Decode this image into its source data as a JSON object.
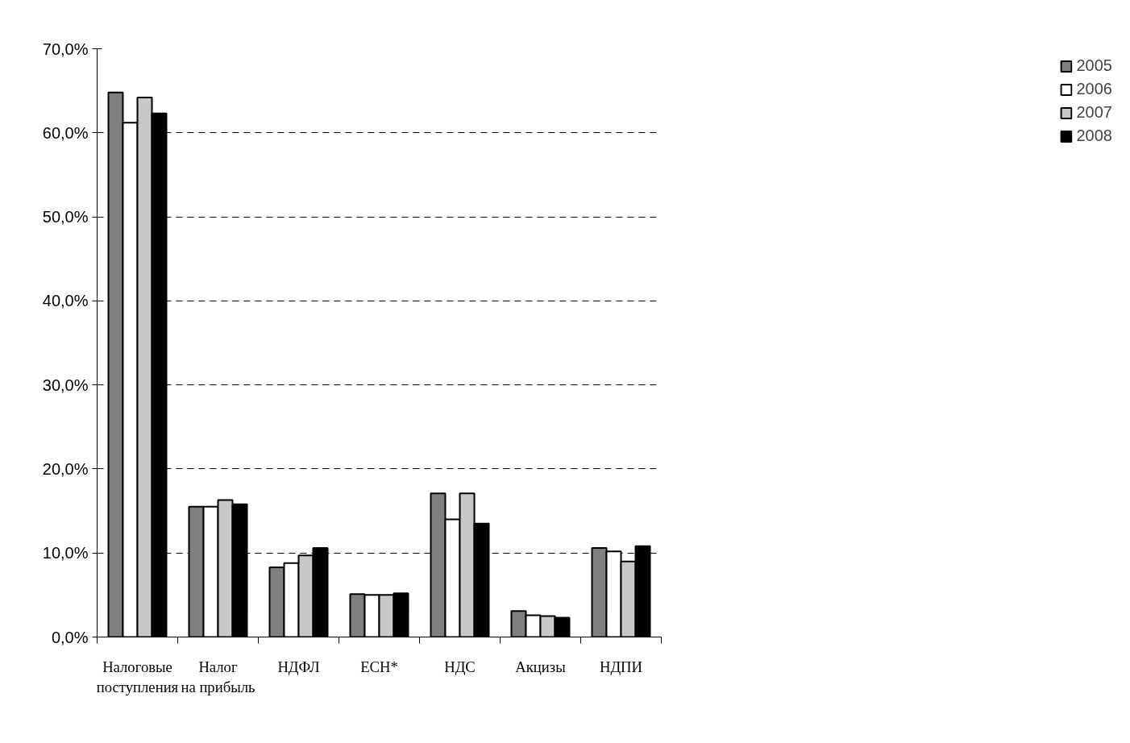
{
  "chart_data": {
    "type": "bar",
    "categories": [
      "Налоговые поступления",
      "Налог на прибыль",
      "НДФЛ",
      "ЕСН*",
      "НДС",
      "Акцизы",
      "НДПИ"
    ],
    "series": [
      {
        "name": "2005",
        "color": "#808080",
        "values": [
          64.8,
          15.5,
          8.3,
          5.1,
          17.1,
          3.1,
          10.6
        ]
      },
      {
        "name": "2006",
        "color": "#ffffff",
        "values": [
          61.2,
          15.5,
          8.8,
          5.0,
          14.0,
          2.6,
          10.2
        ]
      },
      {
        "name": "2007",
        "color": "#c8c8c8",
        "values": [
          64.2,
          16.3,
          9.7,
          5.0,
          17.1,
          2.5,
          9.0
        ]
      },
      {
        "name": "2008",
        "color": "#000000",
        "values": [
          62.3,
          15.8,
          10.6,
          5.2,
          13.5,
          2.3,
          10.8
        ]
      }
    ],
    "ylim": [
      0,
      70
    ],
    "yticks": [
      {
        "value": 0,
        "label": "0,0%"
      },
      {
        "value": 10,
        "label": "10,0%"
      },
      {
        "value": 20,
        "label": "20,0%"
      },
      {
        "value": 30,
        "label": "30,0%"
      },
      {
        "value": 40,
        "label": "40,0%"
      },
      {
        "value": 50,
        "label": "50,0%"
      },
      {
        "value": 60,
        "label": "60,0%"
      },
      {
        "value": 70,
        "label": "70,0%"
      }
    ],
    "grid": "y",
    "legend": "right"
  }
}
